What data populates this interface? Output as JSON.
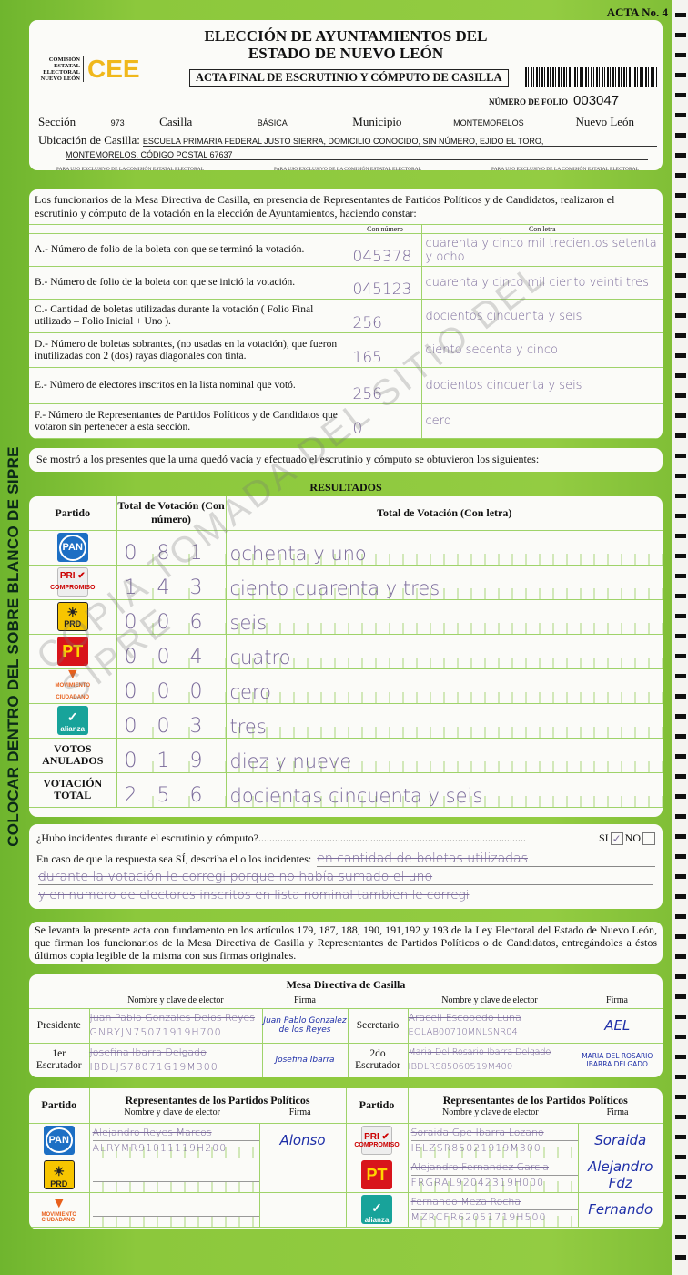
{
  "header": {
    "acta_no": "ACTA No. 4",
    "title_line1": "ELECCIÓN DE AYUNTAMIENTOS DEL",
    "title_line2": "ESTADO DE NUEVO LEÓN",
    "logo_org": "COMISIÓN ESTATAL ELECTORAL NUEVO LEÓN",
    "logo_text": "CEE",
    "subtitle": "ACTA FINAL DE ESCRUTINIO Y CÓMPUTO DE CASILLA",
    "folio_label": "NÚMERO DE FOLIO",
    "folio": "003047",
    "seccion_label": "Sección",
    "seccion": "973",
    "casilla_label": "Casilla",
    "casilla": "BÁSICA",
    "municipio_label": "Municipio",
    "municipio": "MONTEMORELOS",
    "estado": "Nuevo León",
    "ubicacion_label": "Ubicación de Casilla:",
    "ubicacion_line1": "ESCUELA PRIMARIA FEDERAL JUSTO SIERRA, DOMICILIO CONOCIDO, SIN NÚMERO, EJIDO EL TORO,",
    "ubicacion_line2": "MONTEMORELOS, CÓDIGO POSTAL 67637",
    "exclusive_note": "PARA USO EXCLUSIVO DE LA COMISIÓN ESTATAL ELECTORAL"
  },
  "intro": {
    "text": "Los funcionarios de la Mesa Directiva de Casilla, en presencia de Representantes de Partidos Políticos y de Candidatos, realizaron el escrutinio y cómputo de la votación en la elección de Ayuntamientos, haciendo constar:",
    "col_number": "Con número",
    "col_letter": "Con letra",
    "rows": [
      {
        "label": "A.- Número de folio de la boleta con que se terminó la votación.",
        "number": "045378",
        "letter": "cuarenta y cinco mil trecientos setenta y ocho"
      },
      {
        "label": "B.- Número de folio de la boleta con que se inició la votación.",
        "number": "045123",
        "letter": "cuarenta y cinco mil ciento veinti tres"
      },
      {
        "label": "C.- Cantidad de boletas utilizadas durante la votación ( Folio Final utilizado – Folio Inicial + Uno ).",
        "number": "256",
        "letter": "docientos cincuenta y seis"
      },
      {
        "label": "D.- Número de boletas sobrantes, (no usadas en la votación), que fueron inutilizadas con 2 (dos) rayas diagonales con tinta.",
        "number": "165",
        "letter": "ciento secenta y cinco"
      },
      {
        "label": "E.- Número de electores inscritos en la lista nominal que votó.",
        "number": "256",
        "letter": "docientos cincuenta y seis"
      },
      {
        "label": "F.- Número de Representantes de Partidos Políticos y de Candidatos que votaron sin pertenecer a esta sección.",
        "number": "0",
        "letter": "cero"
      }
    ]
  },
  "shown_text": "Se mostró a los presentes que la urna quedó vacía y efectuado el escrutinio y cómputo se obtuvieron los siguientes:",
  "results": {
    "title": "RESULTADOS",
    "col_party": "Partido",
    "col_number": "Total de Votación (Con número)",
    "col_letter": "Total de Votación (Con letra)",
    "rows": [
      {
        "party": "PAN",
        "logo": "pan",
        "number": "081",
        "letter": "ochenta y uno"
      },
      {
        "party": "PRI COMPROMISO",
        "logo": "pri",
        "number": "143",
        "letter": "ciento cuarenta y tres"
      },
      {
        "party": "PRD",
        "logo": "prd",
        "number": "006",
        "letter": "seis"
      },
      {
        "party": "PT",
        "logo": "pt",
        "number": "004",
        "letter": "cuatro"
      },
      {
        "party": "MOVIMIENTO CIUDADANO",
        "logo": "mc",
        "number": "000",
        "letter": "cero"
      },
      {
        "party": "alianza",
        "logo": "na",
        "number": "003",
        "letter": "tres"
      },
      {
        "party": "VOTOS ANULADOS",
        "logo": "",
        "number": "019",
        "letter": "diez y nueve"
      },
      {
        "party": "VOTACIÓN TOTAL",
        "logo": "",
        "number": "256",
        "letter": "docientas cincuenta y seis"
      }
    ]
  },
  "incidents": {
    "question": "¿Hubo incidentes durante el escrutinio y cómputo?..................................................................................................",
    "si": "SI",
    "no": "NO",
    "si_checked": true,
    "describe_label": "En caso de que la respuesta sea SÍ, describa el o los incidentes:",
    "line1": "en cantidad de boletas utilizadas",
    "line2": "durante la votación le corregi porque no había sumado el uno",
    "line3": "y en numero de electores inscritos en lista nominal tambien le corregi"
  },
  "legal": "Se levanta la presente acta con fundamento en los artículos 179, 187, 188, 190, 191,192 y 193 de la Ley Electoral del Estado de Nuevo León, que firman los funcionarios de la Mesa Directiva de Casilla y Representantes de Partidos Políticos o de Candidatos, entregándoles a éstos últimos copia legible de la misma con sus firmas originales.",
  "mesa": {
    "title": "Mesa Directiva de Casilla",
    "col_name": "Nombre y clave de elector",
    "col_sig": "Firma",
    "presidente": {
      "role": "Presidente",
      "name": "Juan Pablo Gonzales Delos Reyes",
      "clave": "GNRYJN75071919H700",
      "sig": "Juan Pablo Gonzalez de los Reyes"
    },
    "secretario": {
      "role": "Secretario",
      "name": "Araceli Escobedo Luna",
      "clave": "EOLAB00710MNLSNR04",
      "sig": "AEL"
    },
    "escrutador1": {
      "role": "1er Escrutador",
      "name": "Josefina Ibarra Delgado",
      "clave": "IBDLJS78071G19M300",
      "sig": "Josefina Ibarra"
    },
    "escrutador2": {
      "role": "2do Escrutador",
      "name": "Maria Del Rosario Ibarra Delgado",
      "clave": "IBDLRS85060519M400",
      "sig": "MARIA DEL ROSARIO IBARRA DELGADO"
    }
  },
  "reps": {
    "col_party": "Partido",
    "title": "Representantes de los Partidos Políticos",
    "col_name": "Nombre y clave de elector",
    "col_sig": "Firma",
    "left": [
      {
        "party": "PAN",
        "logo": "pan",
        "name": "Alejandro Reyes Marcos",
        "clave": "ALRYMR91011119H200",
        "sig": "Alonso"
      },
      {
        "party": "PRD",
        "logo": "prd",
        "name": "",
        "clave": "",
        "sig": ""
      },
      {
        "party": "MOVIMIENTO CIUDADANO",
        "logo": "mc",
        "name": "",
        "clave": "",
        "sig": ""
      }
    ],
    "right": [
      {
        "party": "PRI COMPROMISO",
        "logo": "pri",
        "name": "Soraida Gpe Ibarra Lozano",
        "clave": "IBLZSR85021919M300",
        "sig": "Soraida"
      },
      {
        "party": "PT",
        "logo": "pt",
        "name": "Alejandro Fernandez Garcia",
        "clave": "FRGRAL92042319H000",
        "sig": "Alejandro Fdz"
      },
      {
        "party": "alianza",
        "logo": "na",
        "name": "Fernando Meza Rocha",
        "clave": "MZRCFR62051719H500",
        "sig": "Fernando"
      }
    ]
  },
  "side_text": "COLOCAR DENTRO DEL SOBRE BLANCO DE SIPRE",
  "watermark": "COPIA TOMADA DEL SITIO DEL SIPRE",
  "colors": {
    "background": "#8cc83c",
    "handwriting": "#7a6a9a",
    "signature": "#1f2fa8",
    "cee_logo": "#f0b81c"
  }
}
